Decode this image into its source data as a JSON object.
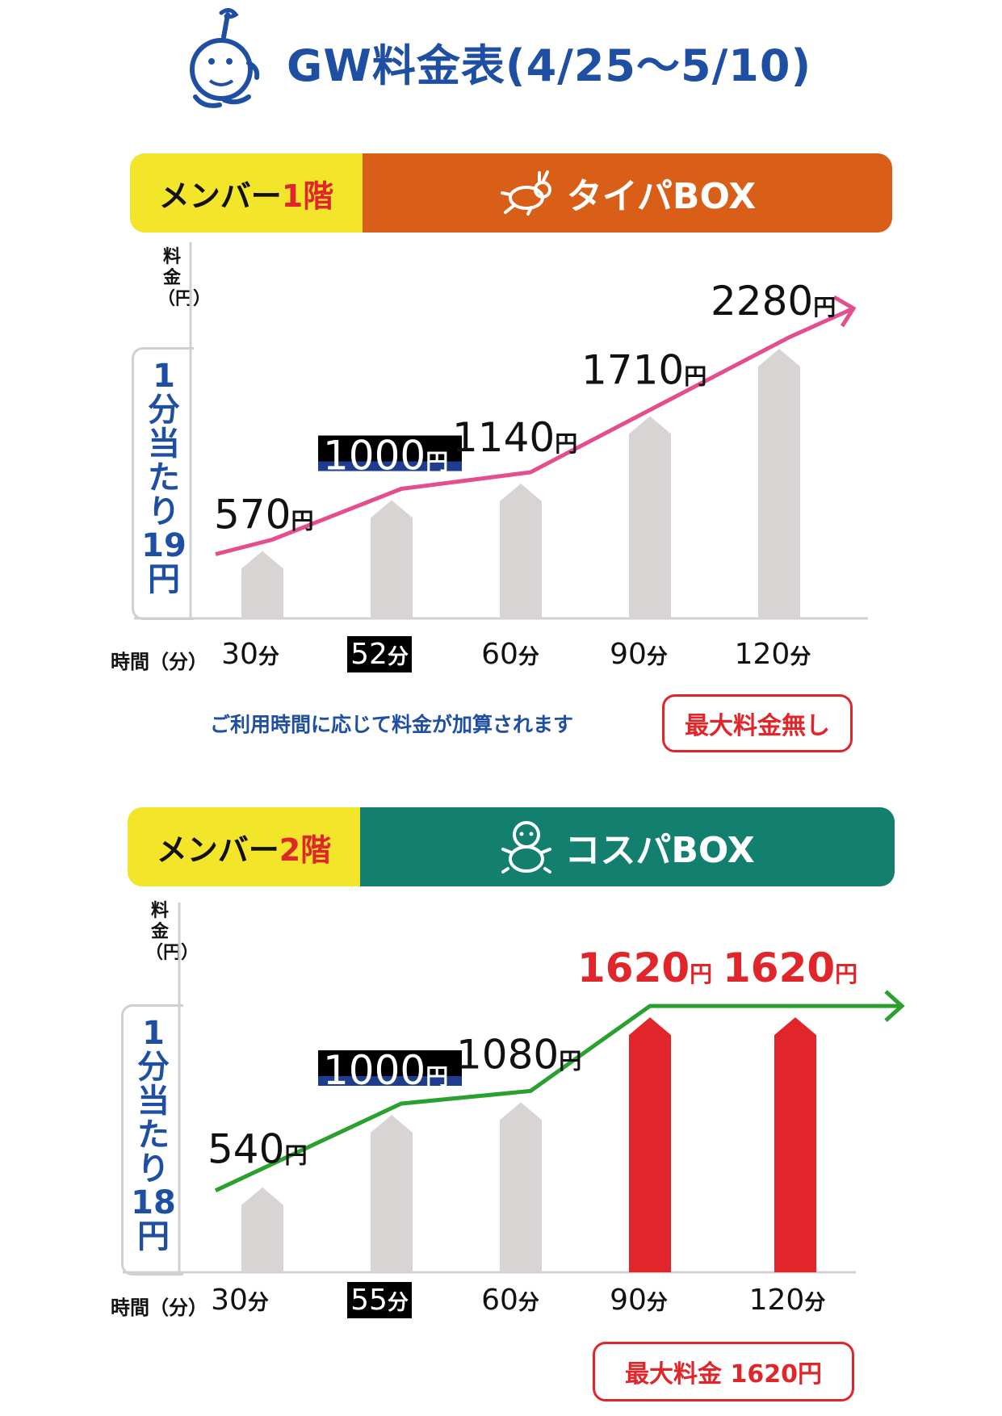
{
  "title": "GW料金表(4/25〜5/10)",
  "colors": {
    "brand_blue": "#1f4fa3",
    "member_yellow": "#f2e52a",
    "orange": "#d95e17",
    "teal": "#137f6e",
    "pink": "#e44d8e",
    "green": "#2aa12f",
    "red": "#e0262a",
    "bar_gray": "#d8d4d4"
  },
  "icons": {
    "logo": "golf-ball-character-icon",
    "box1": "rabbit-icon",
    "box2": "turtle-icon"
  },
  "floor1": {
    "member_prefix": "メンバー",
    "floor_label": "1階",
    "box_name": "タイパBOX",
    "y_unit_chars": [
      "料",
      "金",
      "（",
      "円",
      "）"
    ],
    "per_minute_chars": [
      "1",
      "分",
      "当",
      "た",
      "り",
      "19",
      "円"
    ],
    "x_axis_label": "時間（分）",
    "note": "ご利用時間に応じて料金が加算されます",
    "badge": "最大料金無し"
  },
  "floor2": {
    "member_prefix": "メンバー",
    "floor_label": "2階",
    "box_name": "コスパBOX",
    "y_unit_chars": [
      "料",
      "金",
      "（",
      "円",
      "）"
    ],
    "per_minute_chars": [
      "1",
      "分",
      "当",
      "た",
      "り",
      "18",
      "円"
    ],
    "x_axis_label": "時間（分）",
    "badge": "最大料金 1620円"
  },
  "chart_data": [
    {
      "type": "bar",
      "title": "メンバー1階 タイパBOX",
      "xlabel": "時間（分）",
      "ylabel": "料金（円）",
      "categories": [
        "30分",
        "52分",
        "60分",
        "90分",
        "120分"
      ],
      "minutes": [
        30,
        52,
        60,
        90,
        120
      ],
      "values": [
        570,
        1000,
        1140,
        1710,
        2280
      ],
      "value_labels": [
        "570",
        "1000",
        "1140",
        "1710",
        "2280"
      ],
      "highlight_category": "52分",
      "highlight_bars": [],
      "unit": "円",
      "trend_color": "#e44d8e"
    },
    {
      "type": "bar",
      "title": "メンバー2階 コスパBOX",
      "xlabel": "時間（分）",
      "ylabel": "料金（円）",
      "categories": [
        "30分",
        "55分",
        "60分",
        "90分",
        "120分"
      ],
      "minutes": [
        30,
        55,
        60,
        90,
        120
      ],
      "values": [
        540,
        1000,
        1080,
        1620,
        1620
      ],
      "value_labels": [
        "540",
        "1000",
        "1080",
        "1620",
        "1620"
      ],
      "highlight_category": "55分",
      "highlight_bars": [
        "90分",
        "120分"
      ],
      "unit": "円",
      "trend_color": "#2aa12f"
    }
  ]
}
